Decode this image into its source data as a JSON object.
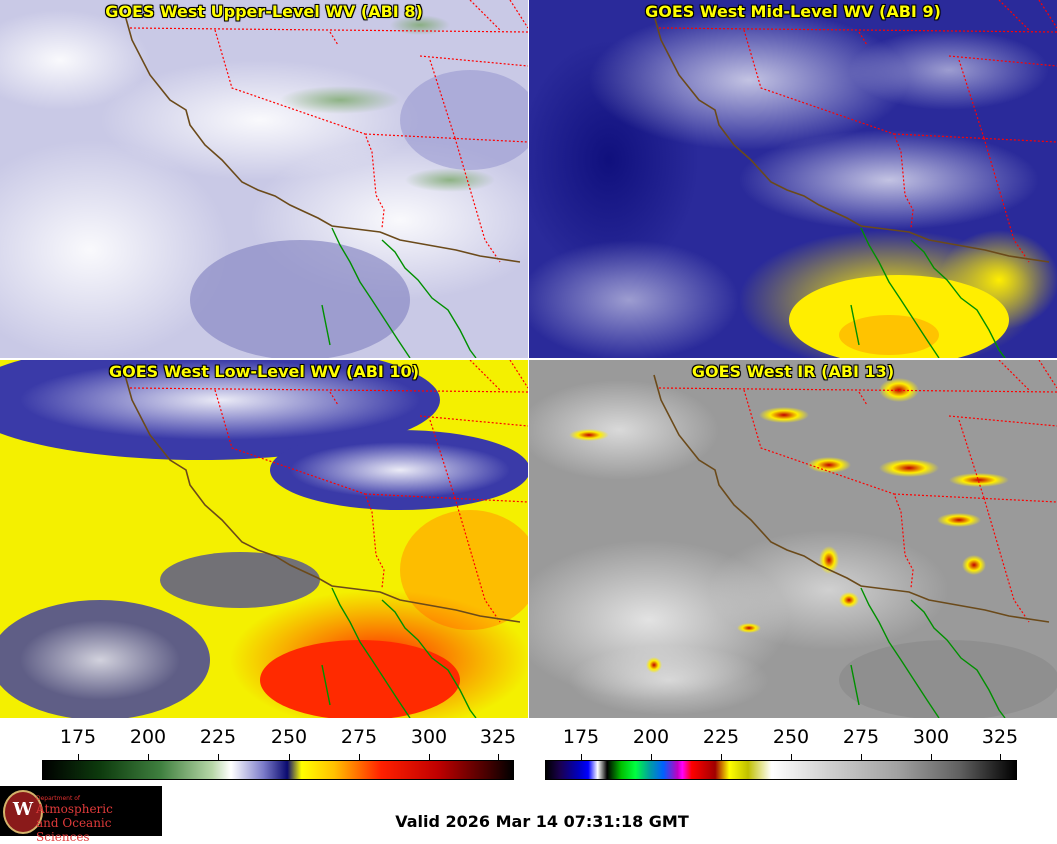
{
  "panels": [
    {
      "title": "GOES West Upper-Level WV (ABI 8)"
    },
    {
      "title": "GOES West Mid-Level WV (ABI 9)"
    },
    {
      "title": "GOES West Low-Level WV (ABI 10)"
    },
    {
      "title": "GOES West IR (ABI 13)"
    }
  ],
  "colorbars": {
    "wv": {
      "ticks": [
        "175",
        "200",
        "225",
        "250",
        "275",
        "300",
        "325"
      ]
    },
    "ir": {
      "ticks": [
        "175",
        "200",
        "225",
        "250",
        "275",
        "300",
        "325"
      ]
    }
  },
  "logo": {
    "department": "Department of",
    "line1": "Atmospheric",
    "line2": "and Oceanic Sciences",
    "seal_letter": "W"
  },
  "valid_time": "Valid 2026 Mar 14 07:31:18 GMT",
  "colors": {
    "border_states": "#ff0000",
    "coastline_us": "#6b4a1a",
    "coastline_mexico": "#009000",
    "title_text": "#ffff00"
  }
}
